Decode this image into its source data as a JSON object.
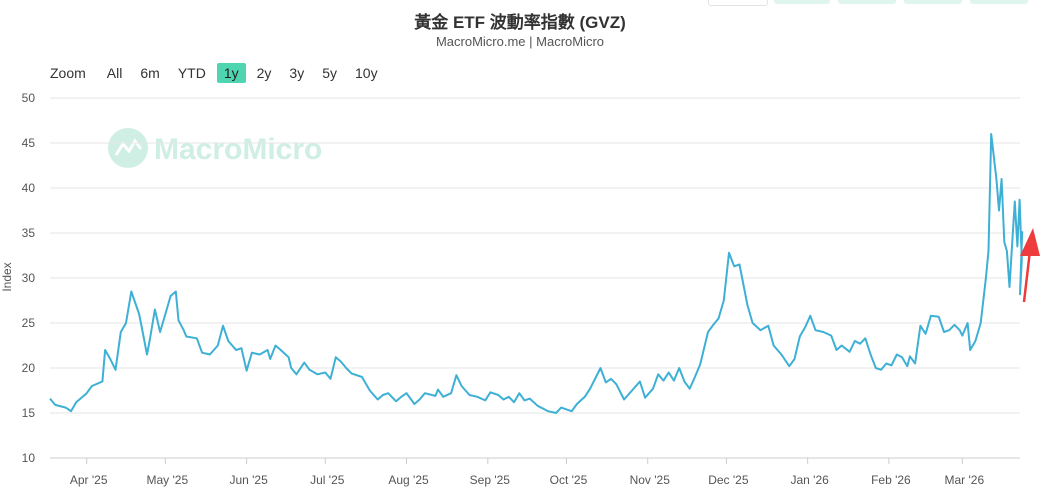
{
  "header": {
    "title": "黃金 ETF 波動率指數 (GVZ)",
    "subtitle": "MacroMicro.me | MacroMicro"
  },
  "range_selector": {
    "zoom_label": "Zoom",
    "buttons": [
      "All",
      "6m",
      "YTD",
      "1y",
      "2y",
      "3y",
      "5y",
      "10y"
    ],
    "active": "1y"
  },
  "watermark": {
    "text": "MacroMicro"
  },
  "colors": {
    "line": "#3eb0d5",
    "grid": "#e6e6e6",
    "active_button": "#4fd6b0",
    "arrow": "#ee3b3b",
    "watermark": "#cfeee4"
  },
  "chart_data": {
    "type": "line",
    "title": "黃金 ETF 波動率指數 (GVZ)",
    "ylabel": "Index",
    "ylim": [
      10,
      50
    ],
    "yticks": [
      10,
      15,
      20,
      25,
      30,
      35,
      40,
      45,
      50
    ],
    "xlim": [
      "2025-03-18",
      "2026-03-23"
    ],
    "xticks": [
      {
        "label": "Apr '25",
        "date": "2025-04-01"
      },
      {
        "label": "May '25",
        "date": "2025-05-01"
      },
      {
        "label": "Jun '25",
        "date": "2025-06-01"
      },
      {
        "label": "Jul '25",
        "date": "2025-07-01"
      },
      {
        "label": "Aug '25",
        "date": "2025-08-01"
      },
      {
        "label": "Sep '25",
        "date": "2025-09-01"
      },
      {
        "label": "Oct '25",
        "date": "2025-10-01"
      },
      {
        "label": "Nov '25",
        "date": "2025-11-01"
      },
      {
        "label": "Dec '25",
        "date": "2025-12-01"
      },
      {
        "label": "Jan '26",
        "date": "2026-01-01"
      },
      {
        "label": "Feb '26",
        "date": "2026-02-01"
      },
      {
        "label": "Mar '26",
        "date": "2026-03-01"
      }
    ],
    "grid": true,
    "series": [
      {
        "values": [
          [
            "2025-03-18",
            16.6
          ],
          [
            "2025-03-20",
            15.9
          ],
          [
            "2025-03-24",
            15.6
          ],
          [
            "2025-03-26",
            15.2
          ],
          [
            "2025-03-28",
            16.2
          ],
          [
            "2025-04-01",
            17.2
          ],
          [
            "2025-04-03",
            18.0
          ],
          [
            "2025-04-07",
            18.5
          ],
          [
            "2025-04-08",
            22.0
          ],
          [
            "2025-04-10",
            21.0
          ],
          [
            "2025-04-12",
            19.8
          ],
          [
            "2025-04-14",
            24.0
          ],
          [
            "2025-04-16",
            25.0
          ],
          [
            "2025-04-18",
            28.5
          ],
          [
            "2025-04-21",
            26.0
          ],
          [
            "2025-04-22",
            24.5
          ],
          [
            "2025-04-24",
            21.5
          ],
          [
            "2025-04-25",
            23.0
          ],
          [
            "2025-04-27",
            26.5
          ],
          [
            "2025-04-29",
            24.0
          ],
          [
            "2025-05-01",
            26.0
          ],
          [
            "2025-05-03",
            28.0
          ],
          [
            "2025-05-05",
            28.5
          ],
          [
            "2025-05-06",
            25.3
          ],
          [
            "2025-05-08",
            24.2
          ],
          [
            "2025-05-09",
            23.5
          ],
          [
            "2025-05-13",
            23.3
          ],
          [
            "2025-05-15",
            21.7
          ],
          [
            "2025-05-18",
            21.5
          ],
          [
            "2025-05-21",
            22.5
          ],
          [
            "2025-05-23",
            24.7
          ],
          [
            "2025-05-25",
            23.0
          ],
          [
            "2025-05-28",
            22.0
          ],
          [
            "2025-05-30",
            22.2
          ],
          [
            "2025-06-01",
            19.7
          ],
          [
            "2025-06-03",
            21.7
          ],
          [
            "2025-06-06",
            21.5
          ],
          [
            "2025-06-09",
            22.0
          ],
          [
            "2025-06-10",
            21.0
          ],
          [
            "2025-06-12",
            22.5
          ],
          [
            "2025-06-14",
            22.0
          ],
          [
            "2025-06-17",
            21.2
          ],
          [
            "2025-06-18",
            20.0
          ],
          [
            "2025-06-20",
            19.3
          ],
          [
            "2025-06-23",
            20.6
          ],
          [
            "2025-06-25",
            19.8
          ],
          [
            "2025-06-28",
            19.3
          ],
          [
            "2025-07-01",
            19.5
          ],
          [
            "2025-07-03",
            18.8
          ],
          [
            "2025-07-05",
            21.2
          ],
          [
            "2025-07-07",
            20.7
          ],
          [
            "2025-07-09",
            20.0
          ],
          [
            "2025-07-11",
            19.4
          ],
          [
            "2025-07-15",
            19.0
          ],
          [
            "2025-07-18",
            17.5
          ],
          [
            "2025-07-21",
            16.5
          ],
          [
            "2025-07-23",
            17.0
          ],
          [
            "2025-07-25",
            17.2
          ],
          [
            "2025-07-28",
            16.3
          ],
          [
            "2025-07-30",
            16.8
          ],
          [
            "2025-08-01",
            17.2
          ],
          [
            "2025-08-04",
            16.0
          ],
          [
            "2025-08-06",
            16.5
          ],
          [
            "2025-08-08",
            17.2
          ],
          [
            "2025-08-12",
            16.9
          ],
          [
            "2025-08-13",
            17.6
          ],
          [
            "2025-08-15",
            16.8
          ],
          [
            "2025-08-18",
            17.2
          ],
          [
            "2025-08-20",
            19.2
          ],
          [
            "2025-08-22",
            18.0
          ],
          [
            "2025-08-25",
            17.0
          ],
          [
            "2025-08-28",
            16.8
          ],
          [
            "2025-08-31",
            16.4
          ],
          [
            "2025-09-02",
            17.3
          ],
          [
            "2025-09-05",
            17.0
          ],
          [
            "2025-09-07",
            16.5
          ],
          [
            "2025-09-09",
            16.8
          ],
          [
            "2025-09-11",
            16.2
          ],
          [
            "2025-09-13",
            17.2
          ],
          [
            "2025-09-15",
            16.4
          ],
          [
            "2025-09-17",
            16.6
          ],
          [
            "2025-09-20",
            15.8
          ],
          [
            "2025-09-22",
            15.5
          ],
          [
            "2025-09-24",
            15.2
          ],
          [
            "2025-09-27",
            15.0
          ],
          [
            "2025-09-29",
            15.6
          ],
          [
            "2025-10-01",
            15.4
          ],
          [
            "2025-10-03",
            15.2
          ],
          [
            "2025-10-05",
            16.0
          ],
          [
            "2025-10-08",
            16.8
          ],
          [
            "2025-10-10",
            17.7
          ],
          [
            "2025-10-14",
            20.0
          ],
          [
            "2025-10-16",
            18.4
          ],
          [
            "2025-10-18",
            18.8
          ],
          [
            "2025-10-20",
            18.2
          ],
          [
            "2025-10-23",
            16.5
          ],
          [
            "2025-10-26",
            17.5
          ],
          [
            "2025-10-29",
            18.5
          ],
          [
            "2025-10-31",
            16.7
          ],
          [
            "2025-11-03",
            17.7
          ],
          [
            "2025-11-05",
            19.3
          ],
          [
            "2025-11-07",
            18.6
          ],
          [
            "2025-11-09",
            19.5
          ],
          [
            "2025-11-11",
            18.6
          ],
          [
            "2025-11-13",
            20.0
          ],
          [
            "2025-11-15",
            18.5
          ],
          [
            "2025-11-17",
            17.7
          ],
          [
            "2025-11-19",
            19.0
          ],
          [
            "2025-11-21",
            20.4
          ],
          [
            "2025-11-24",
            24.0
          ],
          [
            "2025-11-26",
            24.8
          ],
          [
            "2025-11-28",
            25.5
          ],
          [
            "2025-11-30",
            27.5
          ],
          [
            "2025-12-02",
            32.8
          ],
          [
            "2025-12-04",
            31.3
          ],
          [
            "2025-12-06",
            31.5
          ],
          [
            "2025-12-09",
            27.0
          ],
          [
            "2025-12-11",
            25.0
          ],
          [
            "2025-12-14",
            24.2
          ],
          [
            "2025-12-17",
            24.7
          ],
          [
            "2025-12-19",
            22.5
          ],
          [
            "2025-12-22",
            21.5
          ],
          [
            "2025-12-25",
            20.2
          ],
          [
            "2025-12-27",
            21.0
          ],
          [
            "2025-12-29",
            23.5
          ],
          [
            "2025-12-31",
            24.5
          ],
          [
            "2026-01-02",
            25.8
          ],
          [
            "2026-01-04",
            24.2
          ],
          [
            "2026-01-07",
            24.0
          ],
          [
            "2026-01-10",
            23.6
          ],
          [
            "2026-01-12",
            22.0
          ],
          [
            "2026-01-14",
            22.5
          ],
          [
            "2026-01-17",
            21.8
          ],
          [
            "2026-01-19",
            23.0
          ],
          [
            "2026-01-21",
            22.7
          ],
          [
            "2026-01-23",
            23.3
          ],
          [
            "2026-01-25",
            21.5
          ],
          [
            "2026-01-27",
            20.0
          ],
          [
            "2026-01-29",
            19.8
          ],
          [
            "2026-01-31",
            20.5
          ],
          [
            "2026-02-02",
            20.3
          ],
          [
            "2026-02-04",
            21.5
          ],
          [
            "2026-02-06",
            21.2
          ],
          [
            "2026-02-08",
            20.2
          ],
          [
            "2026-02-09",
            21.3
          ],
          [
            "2026-02-11",
            20.5
          ],
          [
            "2026-02-13",
            24.7
          ],
          [
            "2026-02-15",
            23.8
          ],
          [
            "2026-02-17",
            25.8
          ],
          [
            "2026-02-20",
            25.7
          ],
          [
            "2026-02-22",
            24.0
          ],
          [
            "2026-02-24",
            24.2
          ],
          [
            "2026-02-26",
            24.8
          ],
          [
            "2026-02-28",
            24.2
          ],
          [
            "2026-03-01",
            23.6
          ],
          [
            "2026-03-03",
            25.0
          ],
          [
            "2026-03-04",
            22.0
          ],
          [
            "2026-03-06",
            23.0
          ],
          [
            "2026-03-08",
            25.0
          ],
          [
            "2026-03-10",
            30.0
          ],
          [
            "2026-03-11",
            33.0
          ],
          [
            "2026-03-12",
            46.0
          ],
          [
            "2026-03-14",
            41.0
          ],
          [
            "2026-03-15",
            37.5
          ],
          [
            "2026-03-16",
            41.0
          ],
          [
            "2026-03-17",
            34.0
          ],
          [
            "2026-03-18",
            33.0
          ],
          [
            "2026-03-19",
            29.0
          ],
          [
            "2026-03-20",
            33.7
          ],
          [
            "2026-03-21",
            38.5
          ],
          [
            "2026-03-22",
            33.5
          ],
          [
            "2026-03-22",
            38.7
          ],
          [
            "2026-03-22",
            32.0
          ],
          [
            "2026-03-23",
            28.2
          ],
          [
            "2026-03-23",
            35.2
          ]
        ]
      }
    ]
  }
}
